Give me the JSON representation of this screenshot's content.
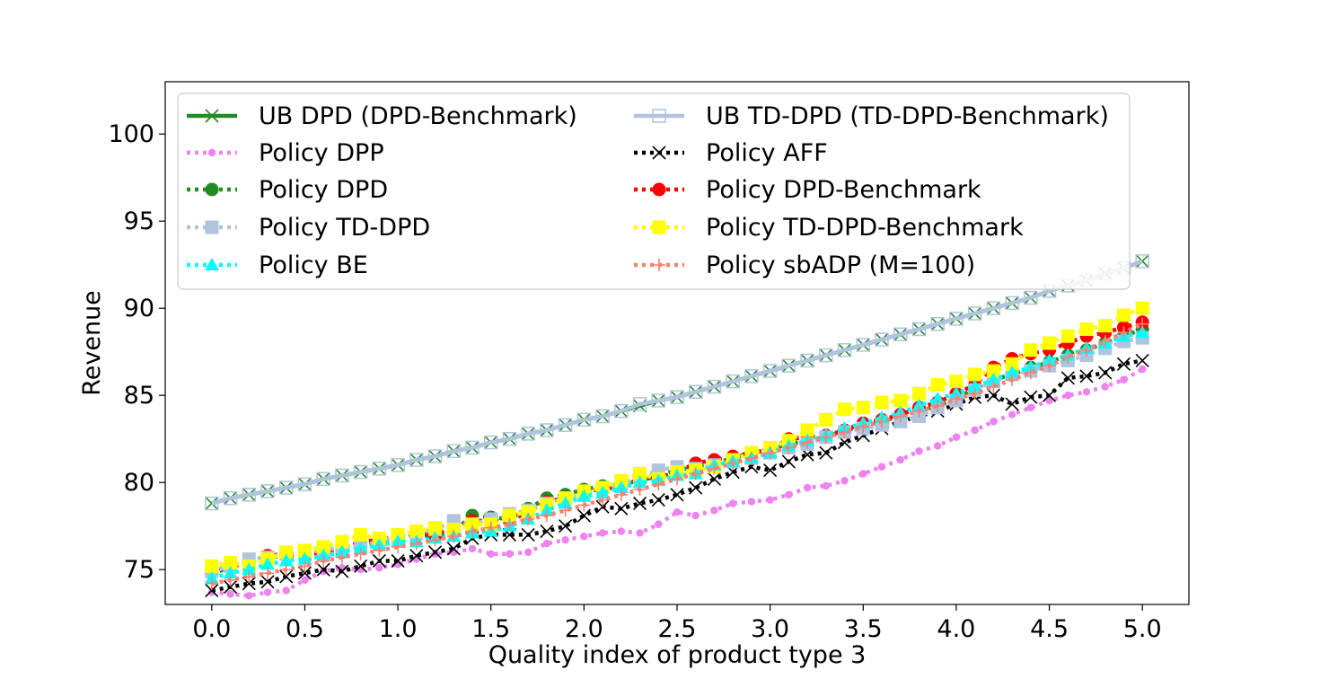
{
  "chart_data": {
    "type": "line",
    "title": "",
    "xlabel": "Quality index of product type 3",
    "ylabel": "Revenue",
    "xlim": [
      -0.25,
      5.25
    ],
    "ylim": [
      73,
      103
    ],
    "x_ticks": [
      "0.0",
      "0.5",
      "1.0",
      "1.5",
      "2.0",
      "2.5",
      "3.0",
      "3.5",
      "4.0",
      "4.5",
      "5.0"
    ],
    "y_ticks": [
      "75",
      "80",
      "85",
      "90",
      "95",
      "100"
    ],
    "legend_position": "upper-left",
    "grid": false,
    "x": [
      0.0,
      0.1,
      0.2,
      0.3,
      0.4,
      0.5,
      0.6,
      0.7,
      0.8,
      0.9,
      1.0,
      1.1,
      1.2,
      1.3,
      1.4,
      1.5,
      1.6,
      1.7,
      1.8,
      1.9,
      2.0,
      2.1,
      2.2,
      2.3,
      2.4,
      2.5,
      2.6,
      2.7,
      2.8,
      2.9,
      3.0,
      3.1,
      3.2,
      3.3,
      3.4,
      3.5,
      3.6,
      3.7,
      3.8,
      3.9,
      4.0,
      4.1,
      4.2,
      4.3,
      4.4,
      4.5,
      4.6,
      4.7,
      4.8,
      4.9,
      5.0
    ],
    "series": [
      {
        "name": "UB DPD (DPD-Benchmark)",
        "color": "#228b22",
        "marker": "x",
        "style": "solid",
        "values": [
          78.8,
          79.1,
          79.3,
          79.5,
          79.7,
          79.9,
          80.2,
          80.4,
          80.6,
          80.8,
          81.0,
          81.3,
          81.5,
          81.8,
          82.0,
          82.3,
          82.5,
          82.8,
          83.0,
          83.3,
          83.6,
          83.8,
          84.1,
          84.4,
          84.7,
          84.9,
          85.2,
          85.5,
          85.8,
          86.1,
          86.4,
          86.7,
          87.0,
          87.3,
          87.6,
          87.9,
          88.2,
          88.5,
          88.8,
          89.1,
          89.4,
          89.7,
          90.0,
          90.3,
          90.6,
          91.0,
          91.3,
          91.6,
          92.0,
          92.3,
          92.7
        ]
      },
      {
        "name": "UB TD-DPD (TD-DPD-Benchmark)",
        "color": "#b0c4de",
        "marker": "square-open",
        "style": "solid",
        "values": [
          78.8,
          79.1,
          79.3,
          79.5,
          79.7,
          79.9,
          80.2,
          80.4,
          80.6,
          80.8,
          81.0,
          81.3,
          81.5,
          81.8,
          82.0,
          82.3,
          82.5,
          82.8,
          83.0,
          83.3,
          83.6,
          83.8,
          84.1,
          84.5,
          84.7,
          84.9,
          85.2,
          85.5,
          85.8,
          86.1,
          86.4,
          86.7,
          87.0,
          87.3,
          87.6,
          87.9,
          88.2,
          88.5,
          88.8,
          89.1,
          89.4,
          89.7,
          90.0,
          90.3,
          90.6,
          91.0,
          91.3,
          91.6,
          92.0,
          92.3,
          92.7
        ]
      },
      {
        "name": "Policy DPP",
        "color": "#ee82ee",
        "marker": "circle-small",
        "style": "dotted",
        "values": [
          73.7,
          73.6,
          73.5,
          73.7,
          73.8,
          74.4,
          74.9,
          75.1,
          75.0,
          75.1,
          75.3,
          75.6,
          75.9,
          76.0,
          76.2,
          75.9,
          75.9,
          76.0,
          76.5,
          76.7,
          76.9,
          77.1,
          77.2,
          77.1,
          77.6,
          78.3,
          78.1,
          78.4,
          78.8,
          78.9,
          79.0,
          79.3,
          79.7,
          79.8,
          80.1,
          80.5,
          80.9,
          81.3,
          81.8,
          82.1,
          82.6,
          83.0,
          83.5,
          83.9,
          84.3,
          84.7,
          85.0,
          85.2,
          85.5,
          85.9,
          86.5
        ]
      },
      {
        "name": "Policy AFF",
        "color": "#000000",
        "marker": "x",
        "style": "dotted",
        "values": [
          73.8,
          74.0,
          74.2,
          74.3,
          74.6,
          74.8,
          75.0,
          74.9,
          75.2,
          75.5,
          75.5,
          75.8,
          76.0,
          76.2,
          76.8,
          77.0,
          77.0,
          77.0,
          77.2,
          77.5,
          78.1,
          78.6,
          78.5,
          78.8,
          79.0,
          79.3,
          79.7,
          80.2,
          80.6,
          80.9,
          80.7,
          81.2,
          81.6,
          81.7,
          82.3,
          82.7,
          83.1,
          83.5,
          83.8,
          84.1,
          84.5,
          84.9,
          85.0,
          84.5,
          84.9,
          85.0,
          86.0,
          86.1,
          86.3,
          86.8,
          87.0
        ]
      },
      {
        "name": "Policy DPD",
        "color": "#228b22",
        "marker": "circle",
        "style": "dotted",
        "values": [
          74.8,
          75.1,
          75.5,
          75.7,
          75.8,
          75.7,
          75.8,
          76.0,
          76.3,
          76.5,
          76.8,
          77.0,
          76.9,
          77.2,
          78.1,
          78.0,
          77.9,
          78.5,
          79.1,
          79.3,
          79.6,
          79.8,
          79.9,
          80.1,
          80.4,
          80.7,
          80.9,
          81.1,
          81.4,
          81.7,
          81.9,
          82.2,
          82.4,
          82.6,
          83.0,
          83.2,
          83.5,
          83.8,
          84.1,
          84.4,
          84.8,
          85.4,
          85.9,
          86.2,
          86.6,
          86.9,
          87.3,
          87.6,
          88.0,
          88.4,
          88.8
        ]
      },
      {
        "name": "Policy DPD-Benchmark",
        "color": "#ff0000",
        "marker": "circle",
        "style": "dotted",
        "values": [
          74.9,
          75.2,
          75.4,
          75.8,
          75.9,
          75.8,
          76.0,
          76.2,
          76.6,
          76.7,
          76.9,
          77.1,
          77.0,
          77.5,
          77.8,
          77.8,
          77.8,
          78.3,
          78.9,
          79.1,
          79.5,
          79.6,
          79.8,
          80.2,
          80.3,
          80.6,
          81.1,
          81.3,
          81.5,
          81.7,
          81.9,
          82.5,
          82.6,
          82.7,
          83.0,
          83.4,
          83.6,
          83.9,
          84.3,
          84.6,
          85.1,
          85.6,
          86.6,
          87.1,
          87.4,
          87.6,
          88.0,
          88.4,
          88.6,
          88.9,
          89.2
        ]
      },
      {
        "name": "Policy TD-DPD",
        "color": "#b0c4de",
        "marker": "square",
        "style": "dotted",
        "values": [
          74.9,
          75.2,
          75.6,
          75.7,
          75.9,
          76.0,
          76.1,
          76.3,
          76.4,
          76.6,
          76.9,
          77.1,
          77.3,
          77.8,
          77.6,
          77.9,
          78.2,
          78.4,
          78.8,
          79.1,
          79.4,
          79.7,
          79.9,
          80.3,
          80.7,
          80.9,
          80.8,
          81.0,
          81.2,
          81.4,
          81.7,
          82.0,
          82.2,
          82.6,
          82.9,
          83.1,
          83.3,
          83.5,
          83.8,
          84.3,
          84.7,
          85.3,
          85.8,
          86.2,
          86.4,
          86.7,
          87.0,
          87.3,
          87.7,
          88.1,
          88.3
        ]
      },
      {
        "name": "Policy TD-DPD-Benchmark",
        "color": "#ffff00",
        "marker": "square",
        "style": "dotted",
        "values": [
          75.2,
          75.4,
          75.2,
          75.6,
          76.0,
          76.1,
          76.3,
          76.6,
          77.0,
          76.8,
          77.0,
          77.2,
          77.4,
          77.3,
          77.6,
          77.6,
          78.1,
          78.3,
          78.7,
          79.1,
          79.5,
          79.7,
          80.1,
          80.5,
          80.2,
          80.6,
          80.7,
          80.9,
          81.3,
          81.7,
          82.0,
          82.4,
          83.0,
          83.6,
          84.2,
          84.3,
          84.6,
          84.7,
          85.1,
          85.6,
          85.8,
          86.2,
          86.4,
          86.8,
          87.6,
          88.0,
          88.4,
          88.8,
          89.0,
          89.6,
          90.0
        ]
      },
      {
        "name": "Policy BE",
        "color": "#00ffff",
        "marker": "triangle",
        "style": "dotted",
        "values": [
          74.5,
          74.8,
          75.0,
          75.3,
          75.5,
          75.6,
          75.8,
          76.0,
          76.2,
          76.4,
          76.6,
          76.6,
          76.8,
          76.9,
          77.1,
          77.2,
          77.5,
          77.9,
          78.4,
          78.8,
          79.2,
          79.4,
          79.7,
          80.0,
          80.1,
          80.4,
          80.5,
          81.0,
          81.2,
          81.4,
          81.7,
          82.1,
          82.4,
          82.7,
          83.1,
          83.4,
          83.7,
          84.0,
          84.4,
          84.8,
          85.1,
          85.5,
          85.9,
          86.3,
          86.6,
          87.0,
          87.3,
          87.7,
          88.0,
          88.4,
          88.6
        ]
      },
      {
        "name": "Policy sbADP (M=100)",
        "color": "#fa8072",
        "marker": "plus",
        "style": "dotted",
        "values": [
          74.2,
          74.4,
          74.6,
          74.8,
          75.0,
          75.2,
          75.5,
          75.7,
          75.9,
          76.1,
          76.3,
          76.5,
          76.7,
          76.9,
          77.2,
          77.4,
          77.6,
          77.9,
          78.1,
          78.4,
          78.7,
          79.0,
          79.3,
          79.6,
          79.9,
          80.2,
          80.5,
          80.8,
          81.1,
          81.4,
          81.7,
          82.0,
          82.3,
          82.6,
          82.9,
          83.2,
          83.5,
          83.8,
          84.1,
          84.4,
          84.8,
          85.1,
          85.5,
          85.9,
          86.3,
          86.7,
          87.2,
          87.6,
          88.1,
          88.6,
          89.1
        ]
      }
    ],
    "legend_order": [
      0,
      1,
      2,
      3,
      4,
      5,
      6,
      7,
      8,
      9
    ],
    "legend_entries": [
      {
        "series": 0
      },
      {
        "series": 1
      },
      {
        "series": 2
      },
      {
        "series": 3
      },
      {
        "series": 4
      },
      {
        "series": 5
      },
      {
        "series": 6
      },
      {
        "series": 7
      },
      {
        "series": 8
      },
      {
        "series": 9
      }
    ]
  }
}
